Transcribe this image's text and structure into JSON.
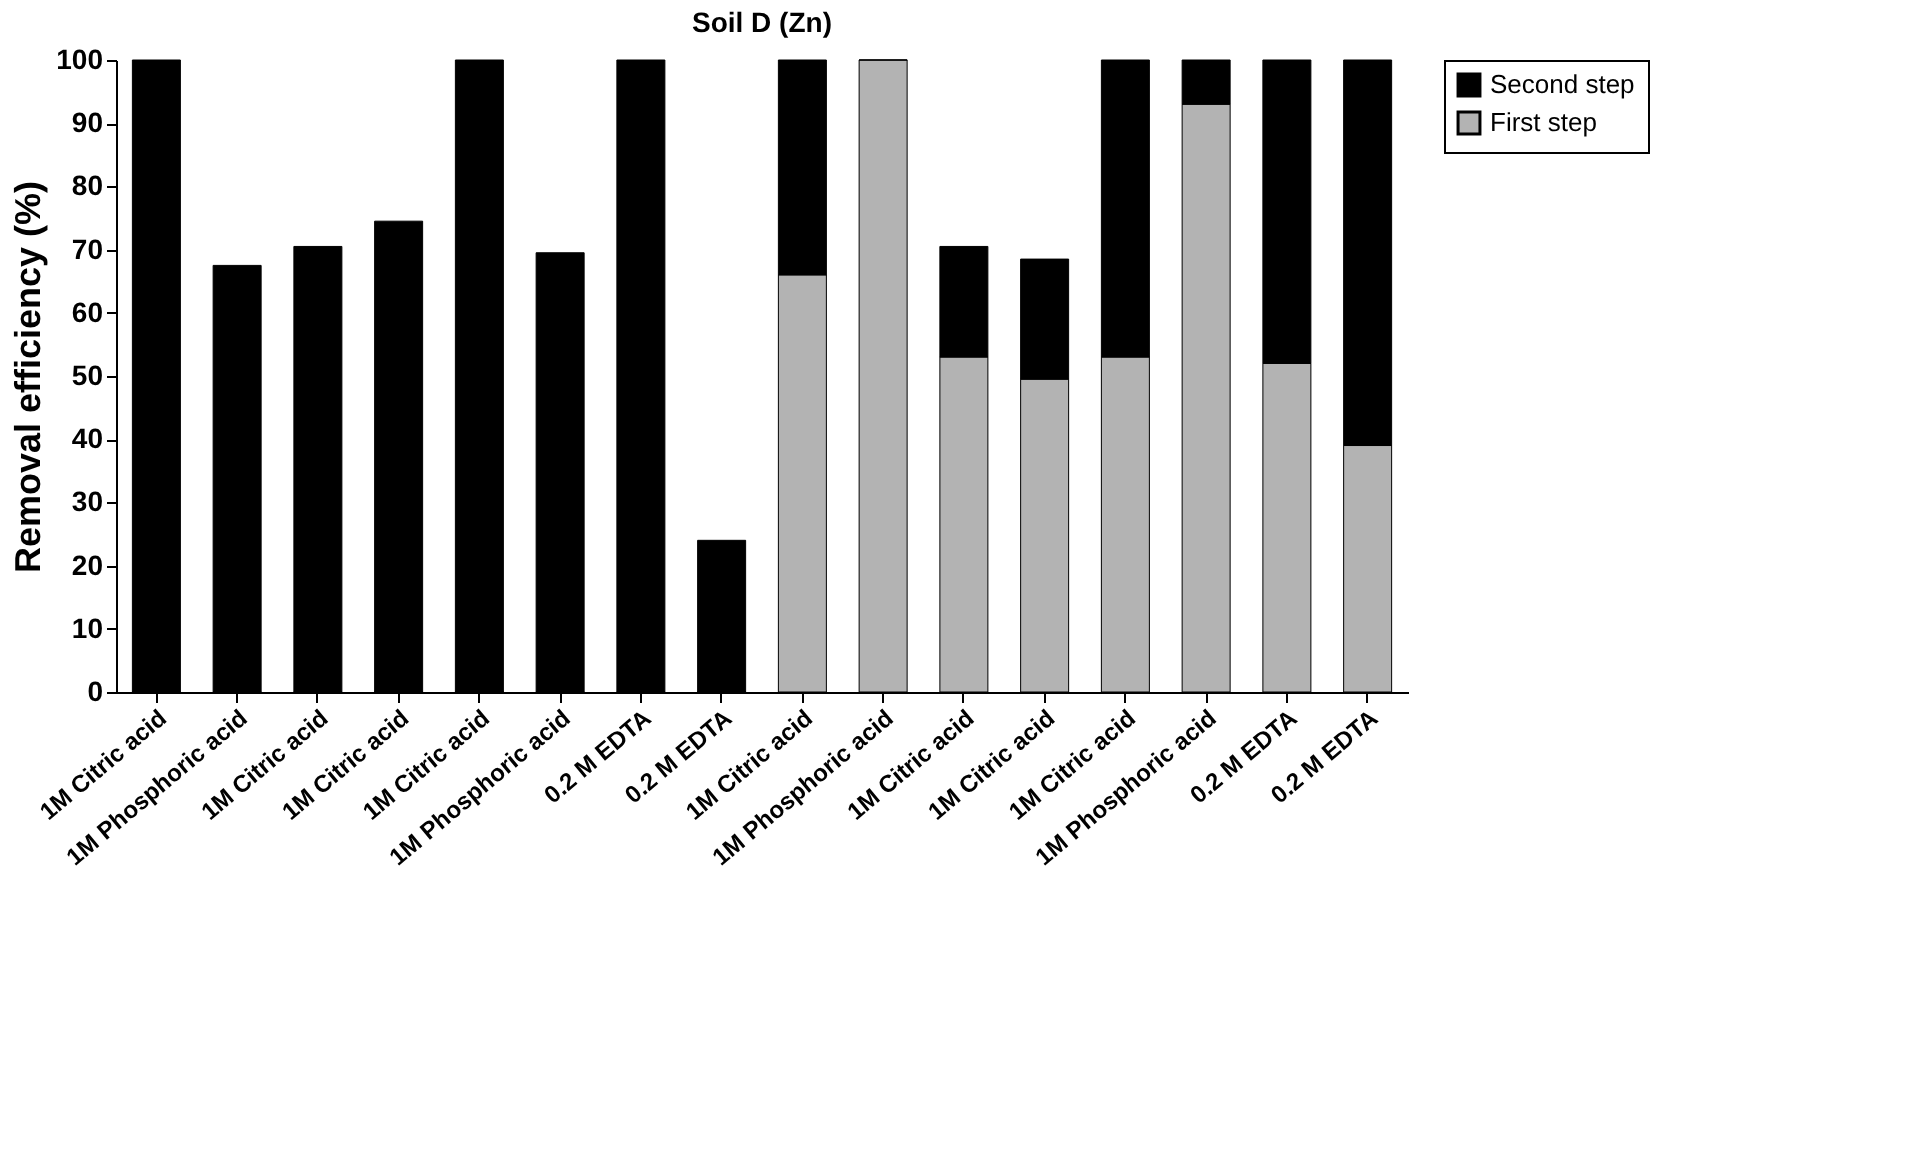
{
  "chart_data": {
    "type": "bar",
    "title": "Soil D (Zn)",
    "ylabel": "Removal efficiency (%)",
    "stacked": true,
    "categories": [
      "1M Citric acid",
      "1M Phosphoric acid",
      "1M Citric acid",
      "1M Citric acid",
      "1M Citric acid",
      "1M Phosphoric acid",
      "0.2 M EDTA",
      "0.2 M EDTA",
      "1M Citric acid",
      "1M Phosphoric acid",
      "1M Citric acid",
      "1M Citric acid",
      "1M Citric acid",
      "1M Phosphoric acid",
      "0.2 M EDTA",
      "0.2 M EDTA"
    ],
    "series": [
      {
        "name": "First step",
        "color": "#b3b3b3",
        "values": [
          0,
          0,
          0,
          0,
          0,
          0,
          0,
          0,
          66,
          100,
          53,
          49.5,
          53,
          93,
          52,
          39
        ]
      },
      {
        "name": "Second step",
        "color": "#000000",
        "values": [
          100,
          67.5,
          70.5,
          74.5,
          100,
          69.5,
          100,
          24,
          34,
          0,
          17.5,
          19,
          47,
          7,
          48,
          61
        ]
      }
    ],
    "ylim": [
      0,
      100
    ],
    "yticks": [
      0,
      10,
      20,
      30,
      40,
      50,
      60,
      70,
      80,
      90,
      100
    ],
    "grid": false,
    "legend": "top right"
  }
}
